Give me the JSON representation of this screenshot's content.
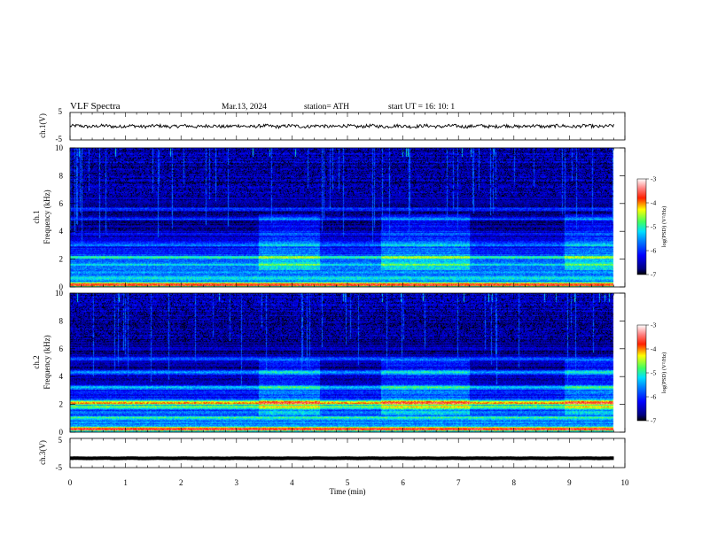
{
  "header": {
    "title": "VLF  Spectra",
    "date": "Mar.13, 2024",
    "station": "station= ATH",
    "start": "start  UT  =    16: 10: 1"
  },
  "colors": {
    "jet_low": "#00007f",
    "jet_mid_low": "#0050ff",
    "jet_cyan": "#20e0ff",
    "jet_green": "#40ff40",
    "jet_yellow": "#ffff00",
    "jet_red": "#ff1010",
    "jet_high": "#ffffff",
    "trace": "#000000"
  },
  "chart_data": [
    {
      "type": "line",
      "panel": "ch1",
      "ylabel": "ch.1(V)",
      "ylim": [
        -5,
        5
      ],
      "yticks": [
        "5",
        "-5"
      ],
      "xlim": [
        0,
        10
      ],
      "trace_x_end": 9.8,
      "description_values": {
        "baseline": 0.0,
        "typical_amplitude": 0.6
      }
    },
    {
      "type": "heatmap",
      "panel": "ch2",
      "ylabel_line1": "ch.1",
      "ylabel_line2": "Frequency  (kHz)",
      "ylim": [
        0,
        10
      ],
      "yticks": [
        "0",
        "2",
        "4",
        "6",
        "8",
        "10"
      ],
      "xlim": [
        0,
        10
      ],
      "data_x_end": 9.8,
      "colorbar": {
        "label": "log(PSD) (V²/Hz)",
        "range": [
          -7,
          -3
        ],
        "ticks": [
          "-3",
          "-4",
          "-5",
          "-6",
          "-7"
        ]
      },
      "bands": [
        {
          "f": 0.15,
          "psd": -3.6
        },
        {
          "f": 0.6,
          "psd": -4.9
        },
        {
          "f": 1.0,
          "psd": -5.3
        },
        {
          "f": 1.6,
          "psd": -5.2
        },
        {
          "f": 2.1,
          "psd": -5.0
        },
        {
          "f": 3.0,
          "psd": -5.6
        },
        {
          "f": 3.8,
          "psd": -6.2
        },
        {
          "f": 4.9,
          "psd": -5.9
        },
        {
          "f": 5.6,
          "psd": -6.0
        },
        {
          "f": 6.8,
          "psd": -6.4
        },
        {
          "f": 8.5,
          "psd": -6.7
        }
      ],
      "enhanced_intervals": [
        {
          "t0": 3.4,
          "t1": 4.5
        },
        {
          "t0": 5.6,
          "t1": 7.2
        },
        {
          "t0": 8.9,
          "t1": 9.8
        }
      ]
    },
    {
      "type": "heatmap",
      "panel": "ch3",
      "ylabel_line1": "ch.2",
      "ylabel_line2": "Frequency  (kHz)",
      "ylim": [
        0,
        10
      ],
      "yticks": [
        "0",
        "2",
        "4",
        "6",
        "8",
        "10"
      ],
      "xlim": [
        0,
        10
      ],
      "data_x_end": 9.8,
      "colorbar": {
        "label": "log(PSD) (V²/Hz)",
        "range": [
          -7,
          -3
        ],
        "ticks": [
          "-3",
          "-4",
          "-5",
          "-6",
          "-7"
        ]
      },
      "bands": [
        {
          "f": 0.2,
          "psd": -3.4
        },
        {
          "f": 1.0,
          "psd": -4.8
        },
        {
          "f": 1.8,
          "psd": -4.6
        },
        {
          "f": 2.1,
          "psd": -4.0
        },
        {
          "f": 3.2,
          "psd": -5.2
        },
        {
          "f": 4.3,
          "psd": -5.4
        },
        {
          "f": 5.3,
          "psd": -5.8
        },
        {
          "f": 7.0,
          "psd": -6.4
        },
        {
          "f": 8.8,
          "psd": -6.6
        }
      ],
      "enhanced_intervals": [
        {
          "t0": 3.4,
          "t1": 4.5
        },
        {
          "t0": 5.6,
          "t1": 7.2
        },
        {
          "t0": 8.9,
          "t1": 9.8
        }
      ]
    },
    {
      "type": "line",
      "panel": "ch4",
      "ylabel": "ch.3(V)",
      "ylim": [
        -5,
        5
      ],
      "yticks": [
        "5",
        "-5"
      ],
      "xlim": [
        0,
        10
      ],
      "trace_x_end": 9.8,
      "description_values": {
        "baseline": -1.8,
        "typical_amplitude": 0.1
      }
    }
  ],
  "xaxis": {
    "label": "Time  (min)",
    "ticks": [
      "0",
      "1",
      "2",
      "3",
      "4",
      "5",
      "6",
      "7",
      "8",
      "9",
      "10"
    ]
  }
}
